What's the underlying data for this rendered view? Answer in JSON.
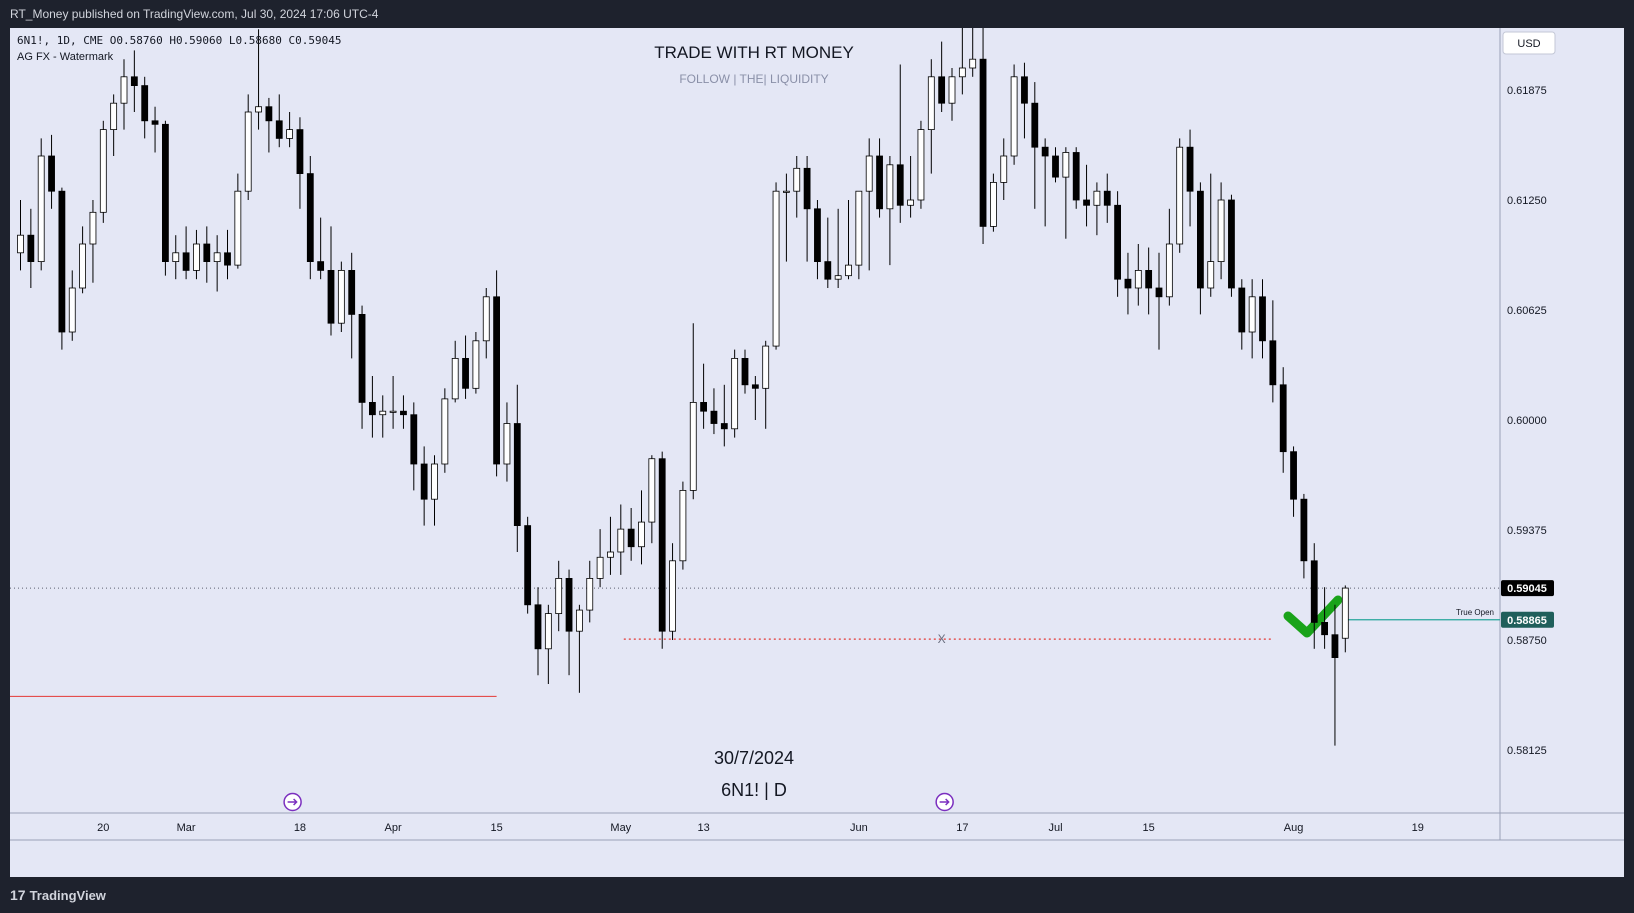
{
  "header": {
    "published_by": "RT_Money published on TradingView.com, Jul 30, 2024 17:06 UTC-4"
  },
  "footer": {
    "brand": "TradingView",
    "brand_mark": "17"
  },
  "legend": {
    "line1": "6N1!, 1D, CME  O0.58760  H0.59060  L0.58680  C0.59045",
    "line2": "AG FX - Watermark"
  },
  "watermark": {
    "title": "TRADE WITH RT MONEY",
    "subtitle": "FOLLOW   |   THE|   LIQUIDITY",
    "date": "30/7/2024",
    "symbol": "6N1! | D"
  },
  "currency_button": "USD",
  "annotations": {
    "true_open_label": "True Open",
    "x_marker": "X"
  },
  "colors": {
    "bull": "#ffffff",
    "bear": "#000000",
    "wick": "#000000",
    "true_open_line": "#26a69a",
    "true_open_tag": "#1f5f5b",
    "last_price_tag": "#000000",
    "red_line": "#e53935",
    "red_dotted": "#e53935",
    "check": "#1aa31a",
    "chart_bg": "#e4e7f5"
  },
  "chart_data": {
    "type": "candlestick",
    "symbol": "6N1!",
    "interval": "1D",
    "y_ticks": [
      "0.61875",
      "0.61250",
      "0.60625",
      "0.60000",
      "0.59375",
      "0.58750",
      "0.58125"
    ],
    "y_tick_values": [
      0.61875,
      0.6125,
      0.60625,
      0.6,
      0.59375,
      0.5875,
      0.58125
    ],
    "x_ticks": [
      {
        "label": "20",
        "index": 8
      },
      {
        "label": "Mar",
        "index": 16
      },
      {
        "label": "18",
        "index": 27
      },
      {
        "label": "Apr",
        "index": 36
      },
      {
        "label": "15",
        "index": 46
      },
      {
        "label": "May",
        "index": 58
      },
      {
        "label": "13",
        "index": 66
      },
      {
        "label": "Jun",
        "index": 81
      },
      {
        "label": "17",
        "index": 91
      },
      {
        "label": "Jul",
        "index": 100
      },
      {
        "label": "15",
        "index": 109
      },
      {
        "label": "Aug",
        "index": 123
      },
      {
        "label": "19",
        "index": 135
      }
    ],
    "last_price": 0.59045,
    "last_price_label": "0.59045",
    "true_open": 0.58865,
    "true_open_label": "0.58865",
    "red_line_level": 0.5843,
    "red_line_end_index": 46,
    "dotted_level": 0.58755,
    "dotted_from_index": 58,
    "dotted_to_index": 121,
    "x_marker_index": 89,
    "event_icon_indices": [
      26,
      89
    ],
    "candles": [
      {
        "o": 0.6095,
        "h": 0.6125,
        "l": 0.6085,
        "c": 0.6105
      },
      {
        "o": 0.6105,
        "h": 0.612,
        "l": 0.6075,
        "c": 0.609
      },
      {
        "o": 0.609,
        "h": 0.616,
        "l": 0.6085,
        "c": 0.615
      },
      {
        "o": 0.615,
        "h": 0.6162,
        "l": 0.612,
        "c": 0.613
      },
      {
        "o": 0.613,
        "h": 0.6132,
        "l": 0.604,
        "c": 0.605
      },
      {
        "o": 0.605,
        "h": 0.6085,
        "l": 0.6045,
        "c": 0.6075
      },
      {
        "o": 0.6075,
        "h": 0.611,
        "l": 0.6072,
        "c": 0.61
      },
      {
        "o": 0.61,
        "h": 0.6125,
        "l": 0.6078,
        "c": 0.6118
      },
      {
        "o": 0.6118,
        "h": 0.617,
        "l": 0.6112,
        "c": 0.6165
      },
      {
        "o": 0.6165,
        "h": 0.6185,
        "l": 0.615,
        "c": 0.618
      },
      {
        "o": 0.618,
        "h": 0.6205,
        "l": 0.6165,
        "c": 0.6195
      },
      {
        "o": 0.6195,
        "h": 0.621,
        "l": 0.6175,
        "c": 0.619
      },
      {
        "o": 0.619,
        "h": 0.6195,
        "l": 0.616,
        "c": 0.617
      },
      {
        "o": 0.617,
        "h": 0.6178,
        "l": 0.6152,
        "c": 0.6168
      },
      {
        "o": 0.6168,
        "h": 0.617,
        "l": 0.6082,
        "c": 0.609
      },
      {
        "o": 0.609,
        "h": 0.6105,
        "l": 0.608,
        "c": 0.6095
      },
      {
        "o": 0.6095,
        "h": 0.611,
        "l": 0.608,
        "c": 0.6085
      },
      {
        "o": 0.6085,
        "h": 0.6108,
        "l": 0.608,
        "c": 0.61
      },
      {
        "o": 0.61,
        "h": 0.611,
        "l": 0.6078,
        "c": 0.609
      },
      {
        "o": 0.609,
        "h": 0.6105,
        "l": 0.6073,
        "c": 0.6095
      },
      {
        "o": 0.6095,
        "h": 0.6108,
        "l": 0.608,
        "c": 0.6088
      },
      {
        "o": 0.6088,
        "h": 0.614,
        "l": 0.6086,
        "c": 0.613
      },
      {
        "o": 0.613,
        "h": 0.6185,
        "l": 0.6125,
        "c": 0.6175
      },
      {
        "o": 0.6175,
        "h": 0.6222,
        "l": 0.6165,
        "c": 0.6178
      },
      {
        "o": 0.6178,
        "h": 0.6183,
        "l": 0.6152,
        "c": 0.617
      },
      {
        "o": 0.617,
        "h": 0.6185,
        "l": 0.6155,
        "c": 0.616
      },
      {
        "o": 0.616,
        "h": 0.6175,
        "l": 0.6155,
        "c": 0.6165
      },
      {
        "o": 0.6165,
        "h": 0.6172,
        "l": 0.612,
        "c": 0.614
      },
      {
        "o": 0.614,
        "h": 0.615,
        "l": 0.608,
        "c": 0.609
      },
      {
        "o": 0.609,
        "h": 0.6115,
        "l": 0.608,
        "c": 0.6085
      },
      {
        "o": 0.6085,
        "h": 0.611,
        "l": 0.6048,
        "c": 0.6055
      },
      {
        "o": 0.6055,
        "h": 0.609,
        "l": 0.605,
        "c": 0.6085
      },
      {
        "o": 0.6085,
        "h": 0.6095,
        "l": 0.6035,
        "c": 0.606
      },
      {
        "o": 0.606,
        "h": 0.6065,
        "l": 0.5995,
        "c": 0.601
      },
      {
        "o": 0.601,
        "h": 0.6025,
        "l": 0.599,
        "c": 0.6003
      },
      {
        "o": 0.6003,
        "h": 0.6014,
        "l": 0.599,
        "c": 0.6005
      },
      {
        "o": 0.6005,
        "h": 0.6025,
        "l": 0.5995,
        "c": 0.6005
      },
      {
        "o": 0.6005,
        "h": 0.6014,
        "l": 0.5995,
        "c": 0.6003
      },
      {
        "o": 0.6003,
        "h": 0.601,
        "l": 0.596,
        "c": 0.5975
      },
      {
        "o": 0.5975,
        "h": 0.5985,
        "l": 0.594,
        "c": 0.5955
      },
      {
        "o": 0.5955,
        "h": 0.598,
        "l": 0.594,
        "c": 0.5975
      },
      {
        "o": 0.5975,
        "h": 0.6018,
        "l": 0.597,
        "c": 0.6012
      },
      {
        "o": 0.6012,
        "h": 0.6045,
        "l": 0.601,
        "c": 0.6035
      },
      {
        "o": 0.6035,
        "h": 0.6048,
        "l": 0.6012,
        "c": 0.6018
      },
      {
        "o": 0.6018,
        "h": 0.605,
        "l": 0.6015,
        "c": 0.6045
      },
      {
        "o": 0.6045,
        "h": 0.6075,
        "l": 0.6035,
        "c": 0.607
      },
      {
        "o": 0.607,
        "h": 0.6085,
        "l": 0.5968,
        "c": 0.5975
      },
      {
        "o": 0.5975,
        "h": 0.601,
        "l": 0.5965,
        "c": 0.5998
      },
      {
        "o": 0.5998,
        "h": 0.602,
        "l": 0.5925,
        "c": 0.594
      },
      {
        "o": 0.594,
        "h": 0.5945,
        "l": 0.589,
        "c": 0.5895
      },
      {
        "o": 0.5895,
        "h": 0.5905,
        "l": 0.5855,
        "c": 0.587
      },
      {
        "o": 0.587,
        "h": 0.5895,
        "l": 0.585,
        "c": 0.589
      },
      {
        "o": 0.589,
        "h": 0.592,
        "l": 0.588,
        "c": 0.591
      },
      {
        "o": 0.591,
        "h": 0.5915,
        "l": 0.5855,
        "c": 0.588
      },
      {
        "o": 0.588,
        "h": 0.5895,
        "l": 0.5845,
        "c": 0.5892
      },
      {
        "o": 0.5892,
        "h": 0.592,
        "l": 0.5885,
        "c": 0.591
      },
      {
        "o": 0.591,
        "h": 0.5938,
        "l": 0.5905,
        "c": 0.5922
      },
      {
        "o": 0.5922,
        "h": 0.5945,
        "l": 0.5912,
        "c": 0.5925
      },
      {
        "o": 0.5925,
        "h": 0.5952,
        "l": 0.5912,
        "c": 0.5938
      },
      {
        "o": 0.5938,
        "h": 0.595,
        "l": 0.592,
        "c": 0.5928
      },
      {
        "o": 0.5928,
        "h": 0.596,
        "l": 0.5918,
        "c": 0.5942
      },
      {
        "o": 0.5942,
        "h": 0.598,
        "l": 0.593,
        "c": 0.5978
      },
      {
        "o": 0.5978,
        "h": 0.5982,
        "l": 0.587,
        "c": 0.588
      },
      {
        "o": 0.588,
        "h": 0.593,
        "l": 0.5875,
        "c": 0.592
      },
      {
        "o": 0.592,
        "h": 0.5965,
        "l": 0.5915,
        "c": 0.596
      },
      {
        "o": 0.596,
        "h": 0.6055,
        "l": 0.5955,
        "c": 0.601
      },
      {
        "o": 0.601,
        "h": 0.6032,
        "l": 0.5995,
        "c": 0.6005
      },
      {
        "o": 0.6005,
        "h": 0.6018,
        "l": 0.5992,
        "c": 0.5998
      },
      {
        "o": 0.5998,
        "h": 0.602,
        "l": 0.5985,
        "c": 0.5995
      },
      {
        "o": 0.5995,
        "h": 0.604,
        "l": 0.599,
        "c": 0.6035
      },
      {
        "o": 0.6035,
        "h": 0.604,
        "l": 0.6015,
        "c": 0.602
      },
      {
        "o": 0.602,
        "h": 0.6025,
        "l": 0.6,
        "c": 0.6018
      },
      {
        "o": 0.6018,
        "h": 0.6045,
        "l": 0.5995,
        "c": 0.6042
      },
      {
        "o": 0.6042,
        "h": 0.6135,
        "l": 0.604,
        "c": 0.613
      },
      {
        "o": 0.613,
        "h": 0.614,
        "l": 0.609,
        "c": 0.613
      },
      {
        "o": 0.613,
        "h": 0.615,
        "l": 0.6115,
        "c": 0.6143
      },
      {
        "o": 0.6143,
        "h": 0.615,
        "l": 0.609,
        "c": 0.612
      },
      {
        "o": 0.612,
        "h": 0.6125,
        "l": 0.608,
        "c": 0.609
      },
      {
        "o": 0.609,
        "h": 0.6115,
        "l": 0.6075,
        "c": 0.608
      },
      {
        "o": 0.608,
        "h": 0.612,
        "l": 0.6075,
        "c": 0.6082
      },
      {
        "o": 0.6082,
        "h": 0.6125,
        "l": 0.608,
        "c": 0.6088
      },
      {
        "o": 0.6088,
        "h": 0.613,
        "l": 0.608,
        "c": 0.613
      },
      {
        "o": 0.613,
        "h": 0.616,
        "l": 0.6085,
        "c": 0.615
      },
      {
        "o": 0.615,
        "h": 0.616,
        "l": 0.6115,
        "c": 0.612
      },
      {
        "o": 0.612,
        "h": 0.615,
        "l": 0.6088,
        "c": 0.6145
      },
      {
        "o": 0.6145,
        "h": 0.6202,
        "l": 0.6112,
        "c": 0.6122
      },
      {
        "o": 0.6122,
        "h": 0.615,
        "l": 0.6115,
        "c": 0.6125
      },
      {
        "o": 0.6125,
        "h": 0.617,
        "l": 0.612,
        "c": 0.6165
      },
      {
        "o": 0.6165,
        "h": 0.6205,
        "l": 0.614,
        "c": 0.6195
      },
      {
        "o": 0.6195,
        "h": 0.6215,
        "l": 0.6175,
        "c": 0.618
      },
      {
        "o": 0.618,
        "h": 0.62,
        "l": 0.617,
        "c": 0.6195
      },
      {
        "o": 0.6195,
        "h": 0.6225,
        "l": 0.6185,
        "c": 0.62
      },
      {
        "o": 0.62,
        "h": 0.6228,
        "l": 0.6195,
        "c": 0.6205
      },
      {
        "o": 0.6205,
        "h": 0.623,
        "l": 0.61,
        "c": 0.611
      },
      {
        "o": 0.611,
        "h": 0.614,
        "l": 0.6107,
        "c": 0.6135
      },
      {
        "o": 0.6135,
        "h": 0.616,
        "l": 0.6125,
        "c": 0.615
      },
      {
        "o": 0.615,
        "h": 0.6202,
        "l": 0.6145,
        "c": 0.6195
      },
      {
        "o": 0.6195,
        "h": 0.6203,
        "l": 0.616,
        "c": 0.618
      },
      {
        "o": 0.618,
        "h": 0.6192,
        "l": 0.612,
        "c": 0.6155
      },
      {
        "o": 0.6155,
        "h": 0.616,
        "l": 0.611,
        "c": 0.615
      },
      {
        "o": 0.615,
        "h": 0.6155,
        "l": 0.6135,
        "c": 0.6138
      },
      {
        "o": 0.6138,
        "h": 0.6155,
        "l": 0.6103,
        "c": 0.6152
      },
      {
        "o": 0.6152,
        "h": 0.6155,
        "l": 0.612,
        "c": 0.6125
      },
      {
        "o": 0.6125,
        "h": 0.6145,
        "l": 0.611,
        "c": 0.6122
      },
      {
        "o": 0.6122,
        "h": 0.6135,
        "l": 0.6105,
        "c": 0.613
      },
      {
        "o": 0.613,
        "h": 0.614,
        "l": 0.6112,
        "c": 0.6122
      },
      {
        "o": 0.6122,
        "h": 0.613,
        "l": 0.607,
        "c": 0.608
      },
      {
        "o": 0.608,
        "h": 0.6095,
        "l": 0.606,
        "c": 0.6075
      },
      {
        "o": 0.6075,
        "h": 0.61,
        "l": 0.6065,
        "c": 0.6085
      },
      {
        "o": 0.6085,
        "h": 0.6098,
        "l": 0.606,
        "c": 0.6075
      },
      {
        "o": 0.6075,
        "h": 0.6095,
        "l": 0.604,
        "c": 0.607
      },
      {
        "o": 0.607,
        "h": 0.612,
        "l": 0.6065,
        "c": 0.61
      },
      {
        "o": 0.61,
        "h": 0.616,
        "l": 0.6095,
        "c": 0.6155
      },
      {
        "o": 0.6155,
        "h": 0.6165,
        "l": 0.611,
        "c": 0.613
      },
      {
        "o": 0.613,
        "h": 0.6135,
        "l": 0.606,
        "c": 0.6075
      },
      {
        "o": 0.6075,
        "h": 0.614,
        "l": 0.607,
        "c": 0.609
      },
      {
        "o": 0.609,
        "h": 0.6135,
        "l": 0.608,
        "c": 0.6125
      },
      {
        "o": 0.6125,
        "h": 0.6128,
        "l": 0.607,
        "c": 0.6075
      },
      {
        "o": 0.6075,
        "h": 0.608,
        "l": 0.604,
        "c": 0.605
      },
      {
        "o": 0.605,
        "h": 0.608,
        "l": 0.6035,
        "c": 0.607
      },
      {
        "o": 0.607,
        "h": 0.608,
        "l": 0.6035,
        "c": 0.6045
      },
      {
        "o": 0.6045,
        "h": 0.6068,
        "l": 0.601,
        "c": 0.602
      },
      {
        "o": 0.602,
        "h": 0.603,
        "l": 0.597,
        "c": 0.5982
      },
      {
        "o": 0.5982,
        "h": 0.5985,
        "l": 0.5945,
        "c": 0.5955
      },
      {
        "o": 0.5955,
        "h": 0.5958,
        "l": 0.591,
        "c": 0.592
      },
      {
        "o": 0.592,
        "h": 0.593,
        "l": 0.587,
        "c": 0.5885
      },
      {
        "o": 0.5885,
        "h": 0.5905,
        "l": 0.587,
        "c": 0.5878
      },
      {
        "o": 0.5878,
        "h": 0.5895,
        "l": 0.5815,
        "c": 0.5865
      },
      {
        "o": 0.5876,
        "h": 0.5906,
        "l": 0.5868,
        "c": 0.59045
      }
    ]
  }
}
